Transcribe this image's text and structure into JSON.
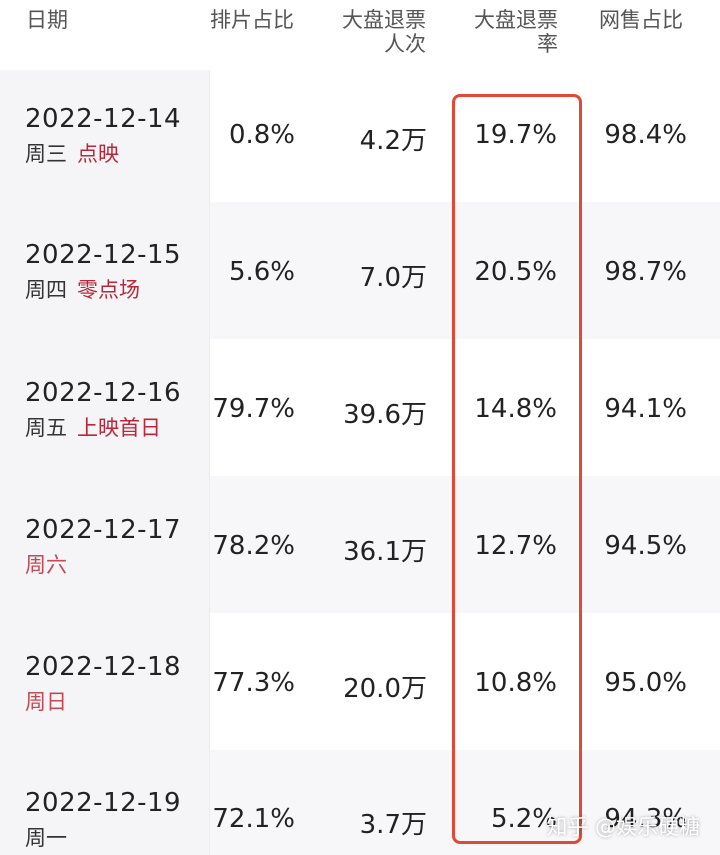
{
  "header": {
    "date": "日期",
    "schedule_share": "排片占比",
    "refund_people_line1": "大盘退票",
    "refund_people_line2": "人次",
    "refund_rate_line1": "大盘退票",
    "refund_rate_line2": "率",
    "online_share": "网售占比"
  },
  "rows": [
    {
      "date": "2022-12-14",
      "weekday": "周三",
      "tag": "点映",
      "schedule_share": "0.8%",
      "refund_people": "4.2万",
      "refund_rate": "19.7%",
      "online_share": "98.4%"
    },
    {
      "date": "2022-12-15",
      "weekday": "周四",
      "tag": "零点场",
      "schedule_share": "5.6%",
      "refund_people": "7.0万",
      "refund_rate": "20.5%",
      "online_share": "98.7%"
    },
    {
      "date": "2022-12-16",
      "weekday": "周五",
      "tag": "上映首日",
      "schedule_share": "79.7%",
      "refund_people": "39.6万",
      "refund_rate": "14.8%",
      "online_share": "94.1%"
    },
    {
      "date": "2022-12-17",
      "weekday": "周六",
      "tag": "",
      "schedule_share": "78.2%",
      "refund_people": "36.1万",
      "refund_rate": "12.7%",
      "online_share": "94.5%"
    },
    {
      "date": "2022-12-18",
      "weekday": "周日",
      "tag": "",
      "schedule_share": "77.3%",
      "refund_people": "20.0万",
      "refund_rate": "10.8%",
      "online_share": "95.0%"
    },
    {
      "date": "2022-12-19",
      "weekday": "周一",
      "tag": "",
      "schedule_share": "72.1%",
      "refund_people": "3.7万",
      "refund_rate": "5.2%",
      "online_share": "94.3%"
    }
  ],
  "watermark": "知乎 @娱乐硬糖",
  "colors": {
    "highlight_border": "#e04a35",
    "tag_red": "#b8283a",
    "weekend_red": "#c24a55"
  }
}
